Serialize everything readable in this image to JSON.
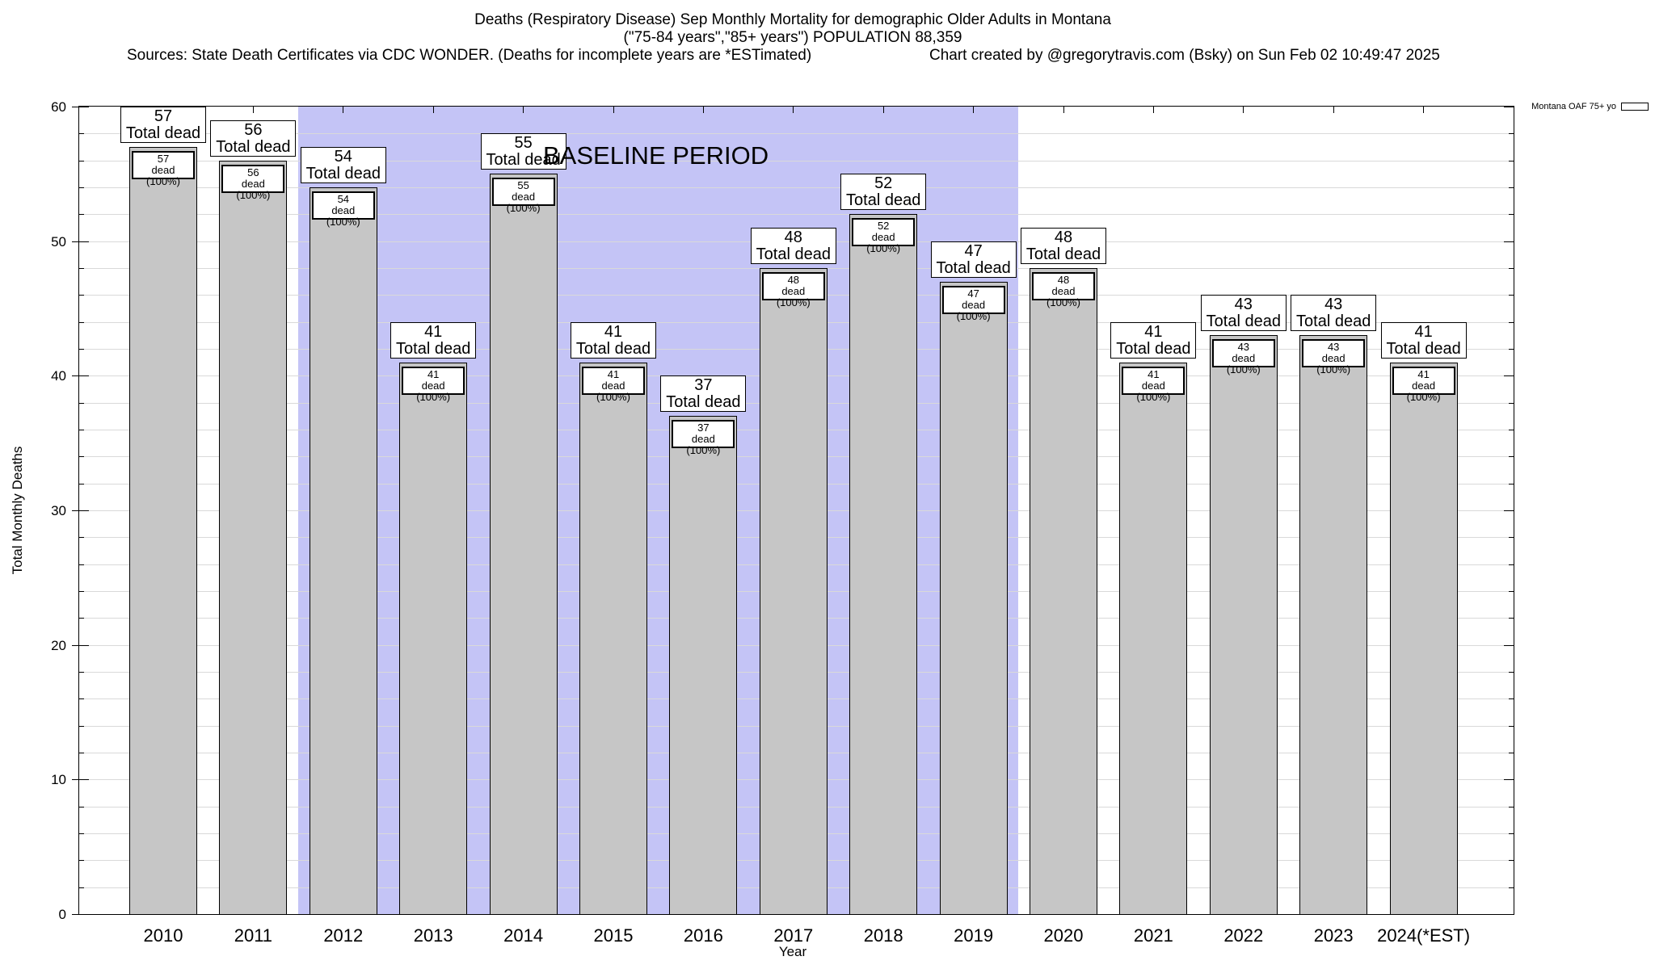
{
  "header": {
    "title_line1": "Deaths (Respiratory Disease) Sep Monthly Mortality for demographic Older Adults in Montana",
    "title_line2": "(\"75-84 years\",\"85+ years\") POPULATION 88,359",
    "source_line": "Sources: State Death Certificates via CDC WONDER. (Deaths for incomplete years are *ESTimated)",
    "credit_line": "Chart created by @gregorytravis.com (Bsky) on Sun Feb 02 10:49:47 2025"
  },
  "legend": {
    "label": "Montana OAF 75+ yo",
    "swatch_color": "#c6c6c6"
  },
  "chart_data": {
    "type": "bar",
    "title": "Deaths (Respiratory Disease) Sep Monthly Mortality for demographic Older Adults in Montana",
    "xlabel": "Year",
    "ylabel": "Total Monthly Deaths",
    "ylim": [
      0,
      60
    ],
    "yticks": [
      0,
      10,
      20,
      30,
      40,
      50,
      60
    ],
    "minor_grid_interval": 2,
    "grid": true,
    "legend_position": "top-right",
    "categories": [
      "2010",
      "2011",
      "2012",
      "2013",
      "2014",
      "2015",
      "2016",
      "2017",
      "2018",
      "2019",
      "2020",
      "2021",
      "2022",
      "2023",
      "2024(*EST)"
    ],
    "values": [
      57,
      56,
      54,
      41,
      55,
      41,
      37,
      48,
      52,
      47,
      48,
      41,
      43,
      43,
      41
    ],
    "bar_label_suffix": "Total dead",
    "inner_label_suffix": "dead (100%)",
    "bar_color": "#c6c6c6",
    "baseline_period": {
      "label": "BASELINE PERIOD",
      "start_category": "2012",
      "end_category": "2019",
      "start_index": 2,
      "end_index": 9,
      "color": "#c4c4f6"
    }
  }
}
